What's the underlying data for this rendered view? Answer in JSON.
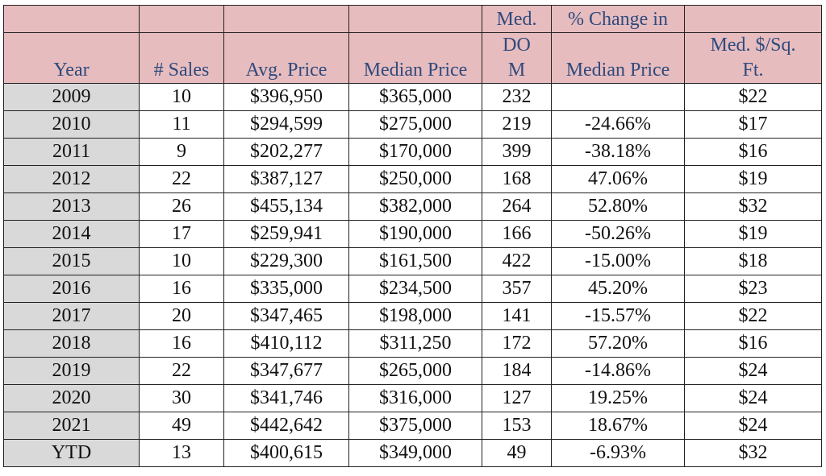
{
  "table": {
    "header_top": [
      "",
      "",
      "",
      "",
      "Med.",
      "% Change in",
      ""
    ],
    "header_main": [
      "Year",
      "# Sales",
      "Avg. Price",
      "Median Price",
      [
        "DO",
        "M"
      ],
      "Median Price",
      [
        "Med. $/Sq.",
        "Ft."
      ]
    ],
    "rows": [
      {
        "year": "2009",
        "sales": "10",
        "avg": "$396,950",
        "median": "$365,000",
        "dom": "232",
        "change": "",
        "sqft": "$22"
      },
      {
        "year": "2010",
        "sales": "11",
        "avg": "$294,599",
        "median": "$275,000",
        "dom": "219",
        "change": "-24.66%",
        "sqft": "$17"
      },
      {
        "year": "2011",
        "sales": "9",
        "avg": "$202,277",
        "median": "$170,000",
        "dom": "399",
        "change": "-38.18%",
        "sqft": "$16"
      },
      {
        "year": "2012",
        "sales": "22",
        "avg": "$387,127",
        "median": "$250,000",
        "dom": "168",
        "change": "47.06%",
        "sqft": "$19"
      },
      {
        "year": "2013",
        "sales": "26",
        "avg": "$455,134",
        "median": "$382,000",
        "dom": "264",
        "change": "52.80%",
        "sqft": "$32"
      },
      {
        "year": "2014",
        "sales": "17",
        "avg": "$259,941",
        "median": "$190,000",
        "dom": "166",
        "change": "-50.26%",
        "sqft": "$19"
      },
      {
        "year": "2015",
        "sales": "10",
        "avg": "$229,300",
        "median": "$161,500",
        "dom": "422",
        "change": "-15.00%",
        "sqft": "$18"
      },
      {
        "year": "2016",
        "sales": "16",
        "avg": "$335,000",
        "median": "$234,500",
        "dom": "357",
        "change": "45.20%",
        "sqft": "$23"
      },
      {
        "year": "2017",
        "sales": "20",
        "avg": "$347,465",
        "median": "$198,000",
        "dom": "141",
        "change": "-15.57%",
        "sqft": "$22"
      },
      {
        "year": "2018",
        "sales": "16",
        "avg": "$410,112",
        "median": "$311,250",
        "dom": "172",
        "change": "57.20%",
        "sqft": "$16"
      },
      {
        "year": "2019",
        "sales": "22",
        "avg": "$347,677",
        "median": "$265,000",
        "dom": "184",
        "change": "-14.86%",
        "sqft": "$24"
      },
      {
        "year": "2020",
        "sales": "30",
        "avg": "$341,746",
        "median": "$316,000",
        "dom": "127",
        "change": "19.25%",
        "sqft": "$24"
      },
      {
        "year": "2021",
        "sales": "49",
        "avg": "$442,642",
        "median": "$375,000",
        "dom": "153",
        "change": "18.67%",
        "sqft": "$24"
      },
      {
        "year": "YTD",
        "sales": "13",
        "avg": "$400,615",
        "median": "$349,000",
        "dom": "49",
        "change": "-6.93%",
        "sqft": "$32"
      }
    ]
  },
  "colors": {
    "header_bg": "#e6bcbf",
    "header_text": "#2f4a7c",
    "year_col_bg": "#d9d9d9",
    "border": "#222222"
  }
}
